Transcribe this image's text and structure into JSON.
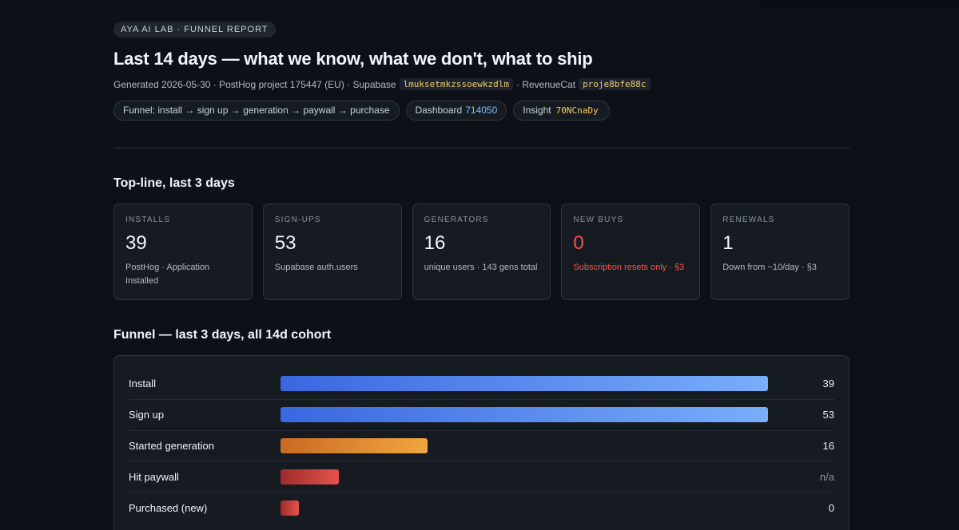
{
  "header": {
    "eyebrow": "AYA AI LAB · FUNNEL REPORT",
    "title": "Last 14 days — what we know, what we don't, what to ship",
    "meta_prefix": "Generated 2026-05-30 · PostHog project 175447 (EU) · Supabase",
    "supabase_id": "lmuksetmkzssoewkzdlm",
    "meta_mid": "· RevenueCat",
    "revenuecat_id": "proje8bfe88c"
  },
  "chips": {
    "funnel": "Funnel: install → sign up → generation → paywall → purchase",
    "dashboard_label": "Dashboard",
    "dashboard_id": "714050",
    "insight_label": "Insight",
    "insight_id": "70NCnaDy"
  },
  "topline": {
    "heading": "Top-line, last 3 days",
    "cards": [
      {
        "label": "INSTALLS",
        "value": "39",
        "sub": "PostHog · Application Installed"
      },
      {
        "label": "SIGN-UPS",
        "value": "53",
        "sub": "Supabase auth.users"
      },
      {
        "label": "GENERATORS",
        "value": "16",
        "sub": "unique users · 143 gens total"
      },
      {
        "label": "NEW BUYS",
        "value": "0",
        "sub": "Subscription resets only · §3"
      },
      {
        "label": "RENEWALS",
        "value": "1",
        "sub": "Down from ~10/day · §3"
      }
    ]
  },
  "funnel": {
    "heading": "Funnel — last 3 days, all 14d cohort",
    "rows": [
      {
        "label": "Install",
        "value": "39",
        "fill": 1.0,
        "color": "blue"
      },
      {
        "label": "Sign up",
        "value": "53",
        "fill": 1.0,
        "color": "blue"
      },
      {
        "label": "Started generation",
        "value": "16",
        "fill": 0.302,
        "color": "orange"
      },
      {
        "label": "Hit paywall",
        "value": "n/a",
        "fill": 0.12,
        "color": "red"
      },
      {
        "label": "Purchased (new)",
        "value": "0",
        "fill": 0.038,
        "color": "red"
      }
    ]
  }
}
